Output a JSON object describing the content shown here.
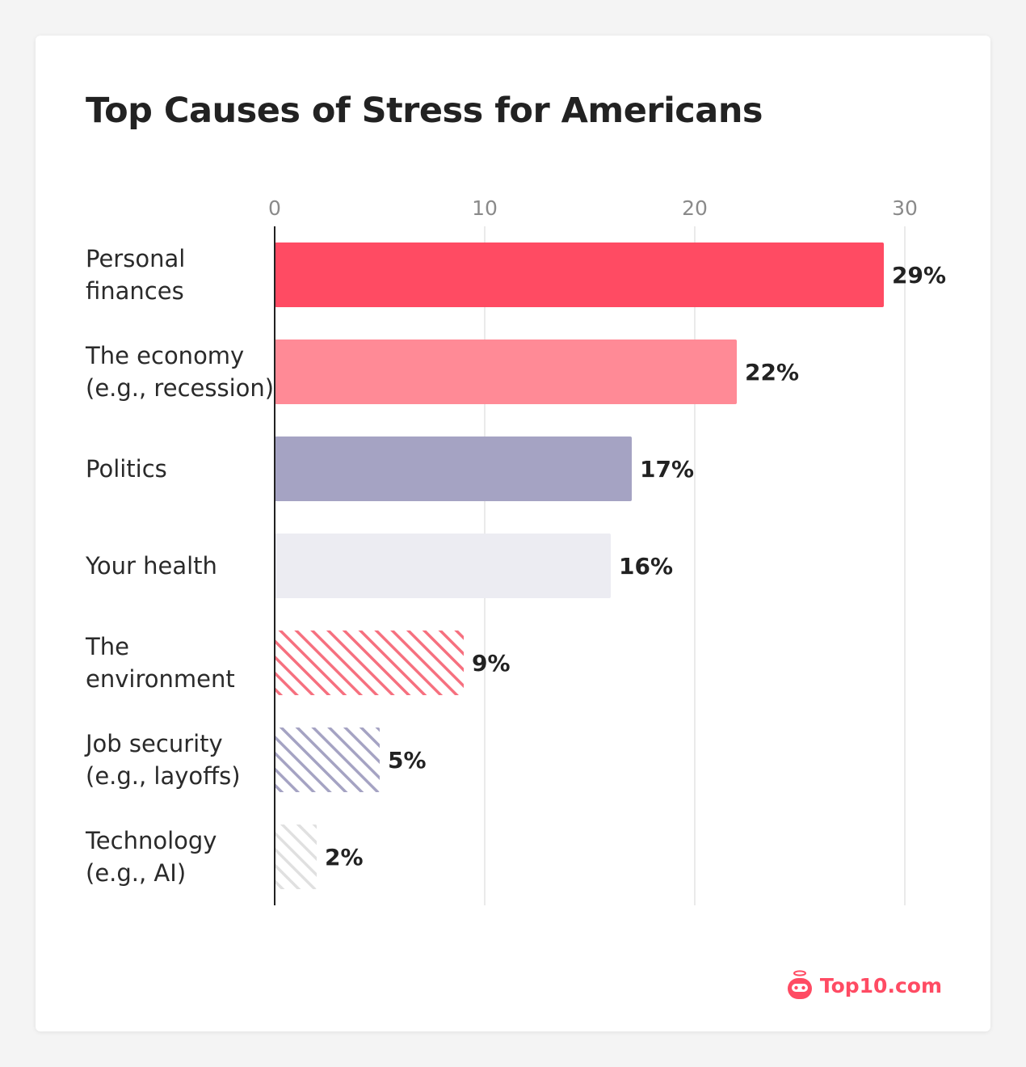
{
  "chart_data": {
    "type": "bar",
    "orientation": "horizontal",
    "title": "Top Causes of Stress for Americans",
    "xlim": [
      0,
      30
    ],
    "xticks": [
      "0",
      "10",
      "20",
      "30"
    ],
    "grid": true,
    "categories": [
      [
        "Personal",
        "finances"
      ],
      [
        "The economy",
        "(e.g., recession)"
      ],
      [
        "Politics"
      ],
      [
        "Your health"
      ],
      [
        "The",
        "environment"
      ],
      [
        "Job security",
        "(e.g., layoffs)"
      ],
      [
        "Technology",
        "(e.g., AI)"
      ]
    ],
    "values": [
      29,
      22,
      17,
      16,
      9,
      5,
      2
    ],
    "value_labels": [
      "29%",
      "22%",
      "17%",
      "16%",
      "9%",
      "5%",
      "2%"
    ],
    "bar_styles": [
      {
        "fill": "solid",
        "color": "#ff4b63"
      },
      {
        "fill": "solid",
        "color": "#ff8a96"
      },
      {
        "fill": "solid",
        "color": "#a5a3c3"
      },
      {
        "fill": "solid",
        "color": "#ececf2"
      },
      {
        "fill": "hatched",
        "color": "#f6707f"
      },
      {
        "fill": "hatched",
        "color": "#a5a3c3"
      },
      {
        "fill": "hatched",
        "color": "#e0e0e0"
      }
    ]
  },
  "brand": {
    "name": "Top10.com",
    "icon": "robot-halo-icon",
    "color": "#ff4b63"
  }
}
